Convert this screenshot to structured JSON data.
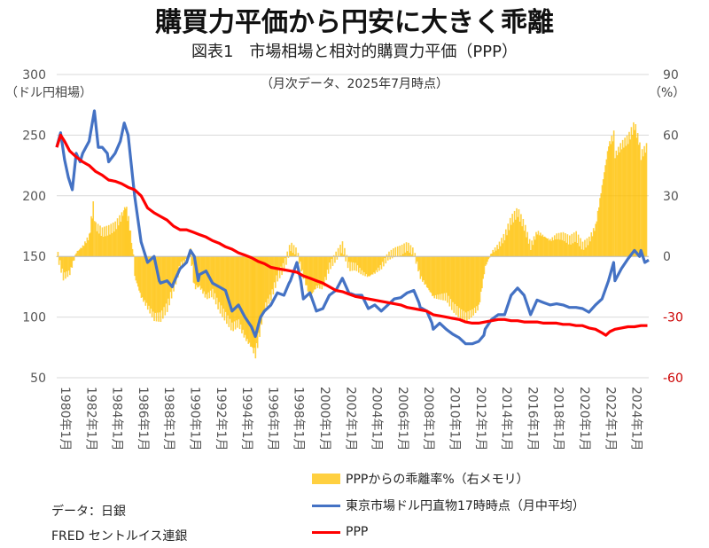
{
  "header": {
    "title": "購買力平価から円安に大きく乖離",
    "subtitle": "図表1　市場相場と相対的購買力平価（PPP）",
    "note": "（月次データ、2025年7月時点）"
  },
  "sources": {
    "line1": "データ：日銀",
    "line2": "FRED セントルイス連銀"
  },
  "chart_data": {
    "type": "line",
    "title": "市場相場と相対的購買力平価（PPP）",
    "left_axis": {
      "label": "（ドル円相場）",
      "range": [
        50,
        300
      ],
      "ticks": [
        "300",
        "250",
        "200",
        "150",
        "100",
        "50"
      ]
    },
    "right_axis": {
      "label": "（%）",
      "range": [
        -60,
        90
      ],
      "ticks": [
        "90",
        "60",
        "30",
        "0",
        "-30",
        "-60"
      ],
      "tick_color_negative": "#cc0000"
    },
    "x_ticks": [
      "1980年1月",
      "1982年1月",
      "1984年1月",
      "1986年1月",
      "1988年1月",
      "1990年1月",
      "1992年1月",
      "1994年1月",
      "1996年1月",
      "1998年1月",
      "2000年1月",
      "2002年1月",
      "2004年1月",
      "2006年1月",
      "2008年1月",
      "2010年1月",
      "2012年1月",
      "2014年1月",
      "2016年1月",
      "2018年1月",
      "2020年1月",
      "2022年1月",
      "2024年1月"
    ],
    "x_range": [
      1980,
      2025.6
    ],
    "grid": true,
    "legend_position": "bottom-right",
    "series": [
      {
        "name": "PPPからの乖離率%（右メモリ）",
        "type": "bar",
        "axis": "right",
        "color": "#ffc000",
        "points": [
          [
            1980,
            2
          ],
          [
            1980.5,
            -10
          ],
          [
            1981,
            -8
          ],
          [
            1981.5,
            2
          ],
          [
            1982,
            5
          ],
          [
            1982.5,
            10
          ],
          [
            1982.8,
            25
          ],
          [
            1983,
            15
          ],
          [
            1983.5,
            12
          ],
          [
            1984,
            13
          ],
          [
            1984.5,
            15
          ],
          [
            1985,
            20
          ],
          [
            1985.3,
            25
          ],
          [
            1985.6,
            15
          ],
          [
            1985.9,
            0
          ],
          [
            1986,
            -10
          ],
          [
            1986.5,
            -20
          ],
          [
            1987,
            -25
          ],
          [
            1987.5,
            -30
          ],
          [
            1988,
            -30
          ],
          [
            1988.5,
            -25
          ],
          [
            1989,
            -15
          ],
          [
            1989.5,
            -5
          ],
          [
            1990,
            -2
          ],
          [
            1990.3,
            2
          ],
          [
            1990.6,
            -15
          ],
          [
            1991,
            -15
          ],
          [
            1991.5,
            -20
          ],
          [
            1992,
            -18
          ],
          [
            1992.5,
            -25
          ],
          [
            1993,
            -30
          ],
          [
            1993.5,
            -35
          ],
          [
            1994,
            -33
          ],
          [
            1994.5,
            -40
          ],
          [
            1995,
            -45
          ],
          [
            1995.3,
            -48
          ],
          [
            1995.7,
            -35
          ],
          [
            1996,
            -25
          ],
          [
            1996.5,
            -20
          ],
          [
            1997,
            -10
          ],
          [
            1997.5,
            -5
          ],
          [
            1998,
            5
          ],
          [
            1998.5,
            2
          ],
          [
            1999,
            -10
          ],
          [
            1999.5,
            -20
          ],
          [
            2000,
            -15
          ],
          [
            2000.5,
            -15
          ],
          [
            2001,
            -5
          ],
          [
            2001.5,
            0
          ],
          [
            2002,
            5
          ],
          [
            2002.5,
            -5
          ],
          [
            2003,
            -5
          ],
          [
            2003.5,
            -8
          ],
          [
            2004,
            -10
          ],
          [
            2004.5,
            -8
          ],
          [
            2005,
            -5
          ],
          [
            2005.5,
            0
          ],
          [
            2006,
            2
          ],
          [
            2006.5,
            3
          ],
          [
            2007,
            5
          ],
          [
            2007.5,
            2
          ],
          [
            2008,
            -10
          ],
          [
            2008.5,
            -15
          ],
          [
            2009,
            -20
          ],
          [
            2009.5,
            -20
          ],
          [
            2010,
            -20
          ],
          [
            2010.5,
            -25
          ],
          [
            2011,
            -28
          ],
          [
            2011.5,
            -30
          ],
          [
            2012,
            -28
          ],
          [
            2012.5,
            -25
          ],
          [
            2013,
            -5
          ],
          [
            2013.5,
            2
          ],
          [
            2014,
            5
          ],
          [
            2014.5,
            10
          ],
          [
            2015,
            18
          ],
          [
            2015.5,
            22
          ],
          [
            2016,
            15
          ],
          [
            2016.5,
            5
          ],
          [
            2017,
            12
          ],
          [
            2017.5,
            10
          ],
          [
            2018,
            8
          ],
          [
            2018.5,
            10
          ],
          [
            2019,
            10
          ],
          [
            2019.5,
            8
          ],
          [
            2020,
            10
          ],
          [
            2020.5,
            5
          ],
          [
            2021,
            8
          ],
          [
            2021.5,
            15
          ],
          [
            2022,
            35
          ],
          [
            2022.5,
            55
          ],
          [
            2022.9,
            60
          ],
          [
            2023,
            50
          ],
          [
            2023.5,
            55
          ],
          [
            2024,
            58
          ],
          [
            2024.5,
            65
          ],
          [
            2024.9,
            55
          ],
          [
            2025,
            50
          ],
          [
            2025.5,
            55
          ]
        ]
      },
      {
        "name": "東京市場ドル円直物17時時点（月中平均）",
        "type": "line",
        "axis": "left",
        "color": "#4472c4",
        "points": [
          [
            1980,
            240
          ],
          [
            1980.3,
            252
          ],
          [
            1980.6,
            230
          ],
          [
            1980.9,
            215
          ],
          [
            1981.2,
            205
          ],
          [
            1981.5,
            235
          ],
          [
            1981.8,
            228
          ],
          [
            1982,
            235
          ],
          [
            1982.5,
            245
          ],
          [
            1982.9,
            270
          ],
          [
            1983.2,
            240
          ],
          [
            1983.5,
            240
          ],
          [
            1983.9,
            235
          ],
          [
            1984,
            228
          ],
          [
            1984.5,
            235
          ],
          [
            1984.9,
            245
          ],
          [
            1985.2,
            260
          ],
          [
            1985.5,
            250
          ],
          [
            1985.9,
            210
          ],
          [
            1986,
            200
          ],
          [
            1986.5,
            162
          ],
          [
            1987,
            145
          ],
          [
            1987.5,
            150
          ],
          [
            1987.9,
            130
          ],
          [
            1988,
            128
          ],
          [
            1988.5,
            130
          ],
          [
            1988.9,
            125
          ],
          [
            1989,
            128
          ],
          [
            1989.5,
            140
          ],
          [
            1990,
            145
          ],
          [
            1990.3,
            155
          ],
          [
            1990.6,
            150
          ],
          [
            1990.9,
            130
          ],
          [
            1991,
            135
          ],
          [
            1991.5,
            138
          ],
          [
            1992,
            128
          ],
          [
            1992.5,
            125
          ],
          [
            1993,
            122
          ],
          [
            1993.5,
            105
          ],
          [
            1994,
            110
          ],
          [
            1994.5,
            100
          ],
          [
            1995,
            92
          ],
          [
            1995.3,
            84
          ],
          [
            1995.7,
            100
          ],
          [
            1996,
            105
          ],
          [
            1996.5,
            110
          ],
          [
            1997,
            120
          ],
          [
            1997.5,
            118
          ],
          [
            1997.9,
            128
          ],
          [
            1998,
            130
          ],
          [
            1998.5,
            145
          ],
          [
            1998.8,
            130
          ],
          [
            1999,
            115
          ],
          [
            1999.5,
            120
          ],
          [
            2000,
            105
          ],
          [
            2000.5,
            107
          ],
          [
            2001,
            118
          ],
          [
            2001.5,
            122
          ],
          [
            2002,
            132
          ],
          [
            2002.5,
            120
          ],
          [
            2003,
            118
          ],
          [
            2003.5,
            118
          ],
          [
            2004,
            107
          ],
          [
            2004.5,
            110
          ],
          [
            2005,
            105
          ],
          [
            2005.5,
            110
          ],
          [
            2006,
            115
          ],
          [
            2006.5,
            116
          ],
          [
            2007,
            120
          ],
          [
            2007.5,
            122
          ],
          [
            2007.9,
            112
          ],
          [
            2008,
            108
          ],
          [
            2008.5,
            105
          ],
          [
            2008.9,
            95
          ],
          [
            2009,
            90
          ],
          [
            2009.5,
            95
          ],
          [
            2010,
            90
          ],
          [
            2010.5,
            86
          ],
          [
            2011,
            83
          ],
          [
            2011.5,
            78
          ],
          [
            2012,
            78
          ],
          [
            2012.5,
            80
          ],
          [
            2012.9,
            85
          ],
          [
            2013,
            90
          ],
          [
            2013.5,
            98
          ],
          [
            2014,
            102
          ],
          [
            2014.5,
            102
          ],
          [
            2015,
            118
          ],
          [
            2015.5,
            124
          ],
          [
            2016,
            118
          ],
          [
            2016.5,
            102
          ],
          [
            2017,
            114
          ],
          [
            2017.5,
            112
          ],
          [
            2018,
            110
          ],
          [
            2018.5,
            111
          ],
          [
            2019,
            110
          ],
          [
            2019.5,
            108
          ],
          [
            2020,
            108
          ],
          [
            2020.5,
            107
          ],
          [
            2021,
            104
          ],
          [
            2021.5,
            110
          ],
          [
            2022,
            115
          ],
          [
            2022.5,
            130
          ],
          [
            2022.9,
            145
          ],
          [
            2023,
            130
          ],
          [
            2023.5,
            140
          ],
          [
            2024,
            148
          ],
          [
            2024.5,
            155
          ],
          [
            2024.9,
            150
          ],
          [
            2025,
            155
          ],
          [
            2025.3,
            145
          ],
          [
            2025.6,
            147
          ]
        ]
      },
      {
        "name": "PPP",
        "type": "line",
        "axis": "left",
        "color": "#ff0000",
        "points": [
          [
            1980,
            240
          ],
          [
            1980.3,
            250
          ],
          [
            1980.6,
            245
          ],
          [
            1981,
            237
          ],
          [
            1981.5,
            232
          ],
          [
            1982,
            228
          ],
          [
            1982.5,
            225
          ],
          [
            1983,
            220
          ],
          [
            1983.5,
            217
          ],
          [
            1984,
            213
          ],
          [
            1984.5,
            212
          ],
          [
            1985,
            210
          ],
          [
            1985.5,
            207
          ],
          [
            1986,
            205
          ],
          [
            1986.5,
            200
          ],
          [
            1987,
            190
          ],
          [
            1987.5,
            186
          ],
          [
            1988,
            183
          ],
          [
            1988.5,
            180
          ],
          [
            1989,
            175
          ],
          [
            1989.5,
            172
          ],
          [
            1990,
            172
          ],
          [
            1990.5,
            170
          ],
          [
            1991,
            168
          ],
          [
            1991.5,
            166
          ],
          [
            1992,
            163
          ],
          [
            1992.5,
            161
          ],
          [
            1993,
            158
          ],
          [
            1993.5,
            156
          ],
          [
            1994,
            153
          ],
          [
            1994.5,
            151
          ],
          [
            1995,
            149
          ],
          [
            1995.5,
            146
          ],
          [
            1996,
            144
          ],
          [
            1996.5,
            141
          ],
          [
            1997,
            140
          ],
          [
            1997.5,
            139
          ],
          [
            1998,
            138
          ],
          [
            1998.5,
            137
          ],
          [
            1999,
            134
          ],
          [
            1999.5,
            132
          ],
          [
            2000,
            130
          ],
          [
            2000.5,
            128
          ],
          [
            2001,
            125
          ],
          [
            2001.5,
            122
          ],
          [
            2002,
            121
          ],
          [
            2002.5,
            119
          ],
          [
            2003,
            117
          ],
          [
            2003.5,
            116
          ],
          [
            2004,
            115
          ],
          [
            2004.5,
            114
          ],
          [
            2005,
            113
          ],
          [
            2005.5,
            112
          ],
          [
            2006,
            111
          ],
          [
            2006.5,
            110
          ],
          [
            2007,
            108
          ],
          [
            2007.5,
            107
          ],
          [
            2008,
            106
          ],
          [
            2008.5,
            105
          ],
          [
            2009,
            102
          ],
          [
            2009.5,
            101
          ],
          [
            2010,
            100
          ],
          [
            2010.5,
            99
          ],
          [
            2011,
            98
          ],
          [
            2011.5,
            96
          ],
          [
            2012,
            95
          ],
          [
            2012.5,
            95
          ],
          [
            2013,
            96
          ],
          [
            2013.5,
            97
          ],
          [
            2014,
            98
          ],
          [
            2014.5,
            98
          ],
          [
            2015,
            97
          ],
          [
            2015.5,
            97
          ],
          [
            2016,
            96
          ],
          [
            2016.5,
            96
          ],
          [
            2017,
            96
          ],
          [
            2017.5,
            95
          ],
          [
            2018,
            95
          ],
          [
            2018.5,
            95
          ],
          [
            2019,
            94
          ],
          [
            2019.5,
            94
          ],
          [
            2020,
            93
          ],
          [
            2020.5,
            93
          ],
          [
            2021,
            91
          ],
          [
            2021.5,
            90
          ],
          [
            2022,
            87
          ],
          [
            2022.3,
            85
          ],
          [
            2022.6,
            88
          ],
          [
            2023,
            90
          ],
          [
            2023.5,
            91
          ],
          [
            2024,
            92
          ],
          [
            2024.5,
            92
          ],
          [
            2025,
            93
          ],
          [
            2025.5,
            93
          ]
        ]
      }
    ]
  }
}
